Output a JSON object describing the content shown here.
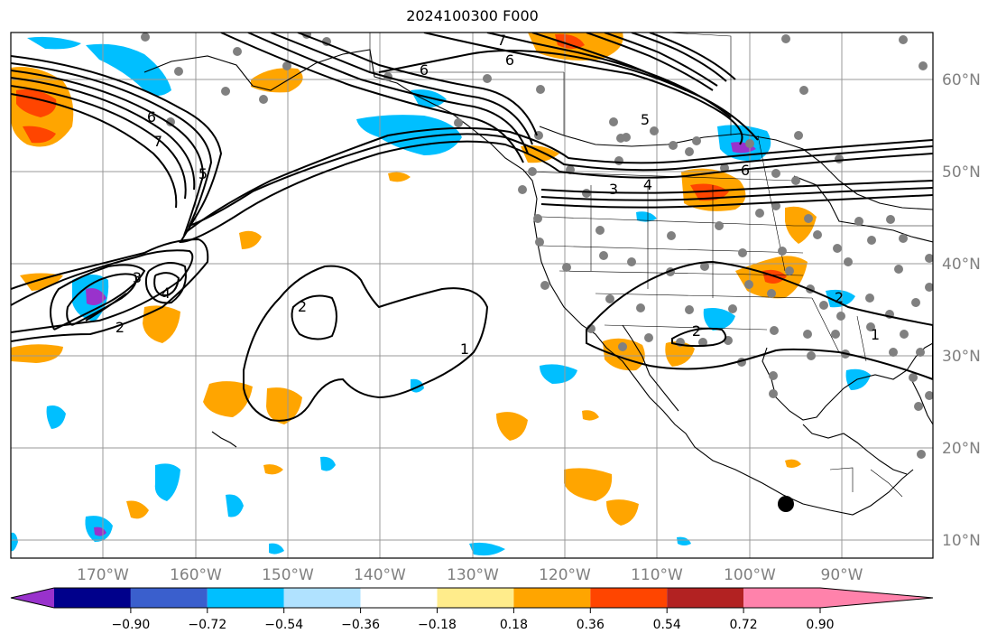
{
  "title": "2024100300 F000",
  "lat_labels": [
    "60°N",
    "50°N",
    "40°N",
    "30°N",
    "20°N",
    "10°N"
  ],
  "lon_labels": [
    "170°W",
    "160°W",
    "150°W",
    "140°W",
    "130°W",
    "120°W",
    "110°W",
    "100°W",
    "90°W"
  ],
  "colorbar": {
    "colors": [
      "#9932cc",
      "#00008b",
      "#3a5fcd",
      "#00bfff",
      "#b0e2ff",
      "#ffffff",
      "#ffec8b",
      "#ffa500",
      "#ff4500",
      "#b22222",
      "#ff82ab"
    ],
    "tick_labels": [
      "−0.90",
      "−0.72",
      "−0.54",
      "−0.36",
      "−0.18",
      "0.18",
      "0.36",
      "0.54",
      "0.72",
      "0.90"
    ]
  },
  "contour_labels": {
    "c6a": "6",
    "c7a": "7",
    "c6b": "6",
    "c7b": "7",
    "c5a": "5",
    "c6c": "6",
    "c3a": "3",
    "c4a": "4",
    "c6d": "6",
    "c5b": "5",
    "c3b": "3",
    "c4b": "4",
    "c2a": "2",
    "c2b": "2",
    "c2c": "2",
    "c1a": "1",
    "c1b": "1",
    "c2d": "2"
  }
}
